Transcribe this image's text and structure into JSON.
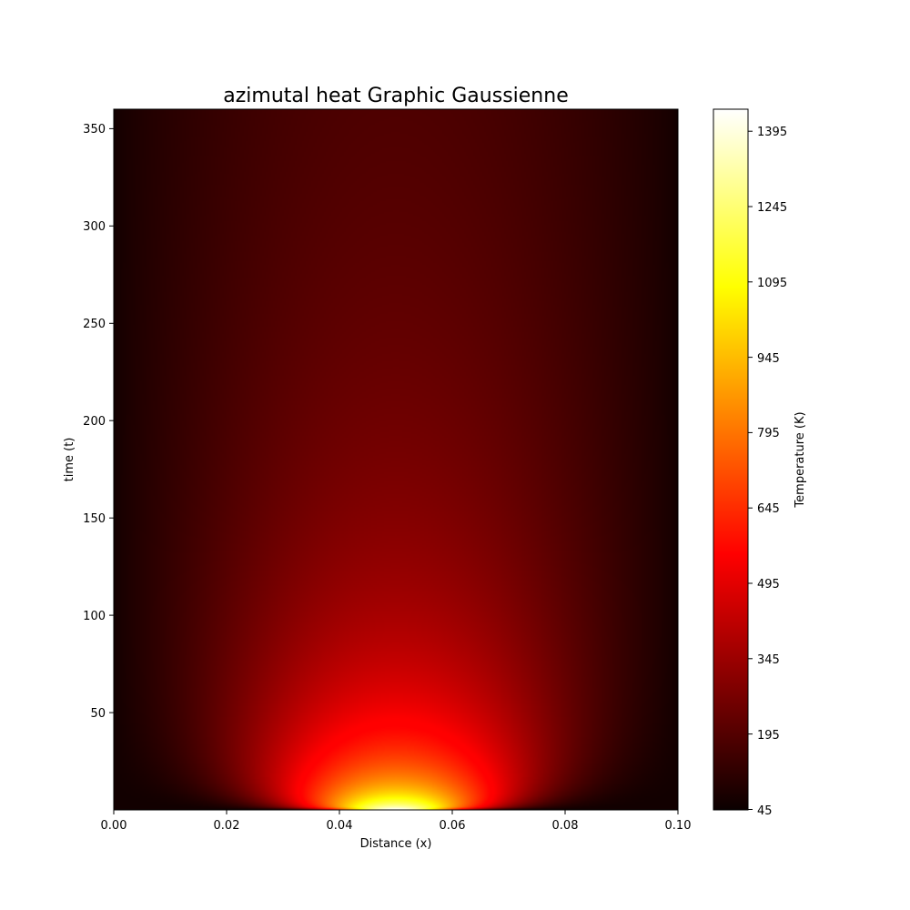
{
  "chart_data": {
    "type": "heatmap",
    "title": "azimutal heat Graphic Gaussienne",
    "xlabel": "Distance (x)",
    "ylabel": "time (t)",
    "xlim": [
      0.0,
      0.1
    ],
    "ylim": [
      0,
      360
    ],
    "x_ticks": [
      "0.00",
      "0.02",
      "0.04",
      "0.06",
      "0.08",
      "0.10"
    ],
    "y_ticks": [
      "50",
      "100",
      "150",
      "200",
      "250",
      "300",
      "350"
    ],
    "colormap": "hot",
    "colorbar": {
      "label": "Temperature (K)",
      "range": [
        45,
        1440
      ],
      "ticks": [
        "45",
        "195",
        "345",
        "495",
        "645",
        "795",
        "945",
        "1095",
        "1245",
        "1395"
      ]
    },
    "field": {
      "description": "Gaussian pulse centered at x=0.05 diffusing over time, zero temperature near boundaries",
      "center_x": 0.05,
      "samples": [
        {
          "t": 0,
          "x": 0.05,
          "T": 1440
        },
        {
          "t": 0,
          "x": 0.04,
          "T": 500
        },
        {
          "t": 50,
          "x": 0.05,
          "T": 640
        },
        {
          "t": 100,
          "x": 0.05,
          "T": 470
        },
        {
          "t": 200,
          "x": 0.05,
          "T": 310
        },
        {
          "t": 300,
          "x": 0.05,
          "T": 215
        },
        {
          "t": 360,
          "x": 0.05,
          "T": 180
        },
        {
          "t": 200,
          "x": 0.0,
          "T": 45
        },
        {
          "t": 200,
          "x": 0.1,
          "T": 45
        }
      ]
    }
  }
}
